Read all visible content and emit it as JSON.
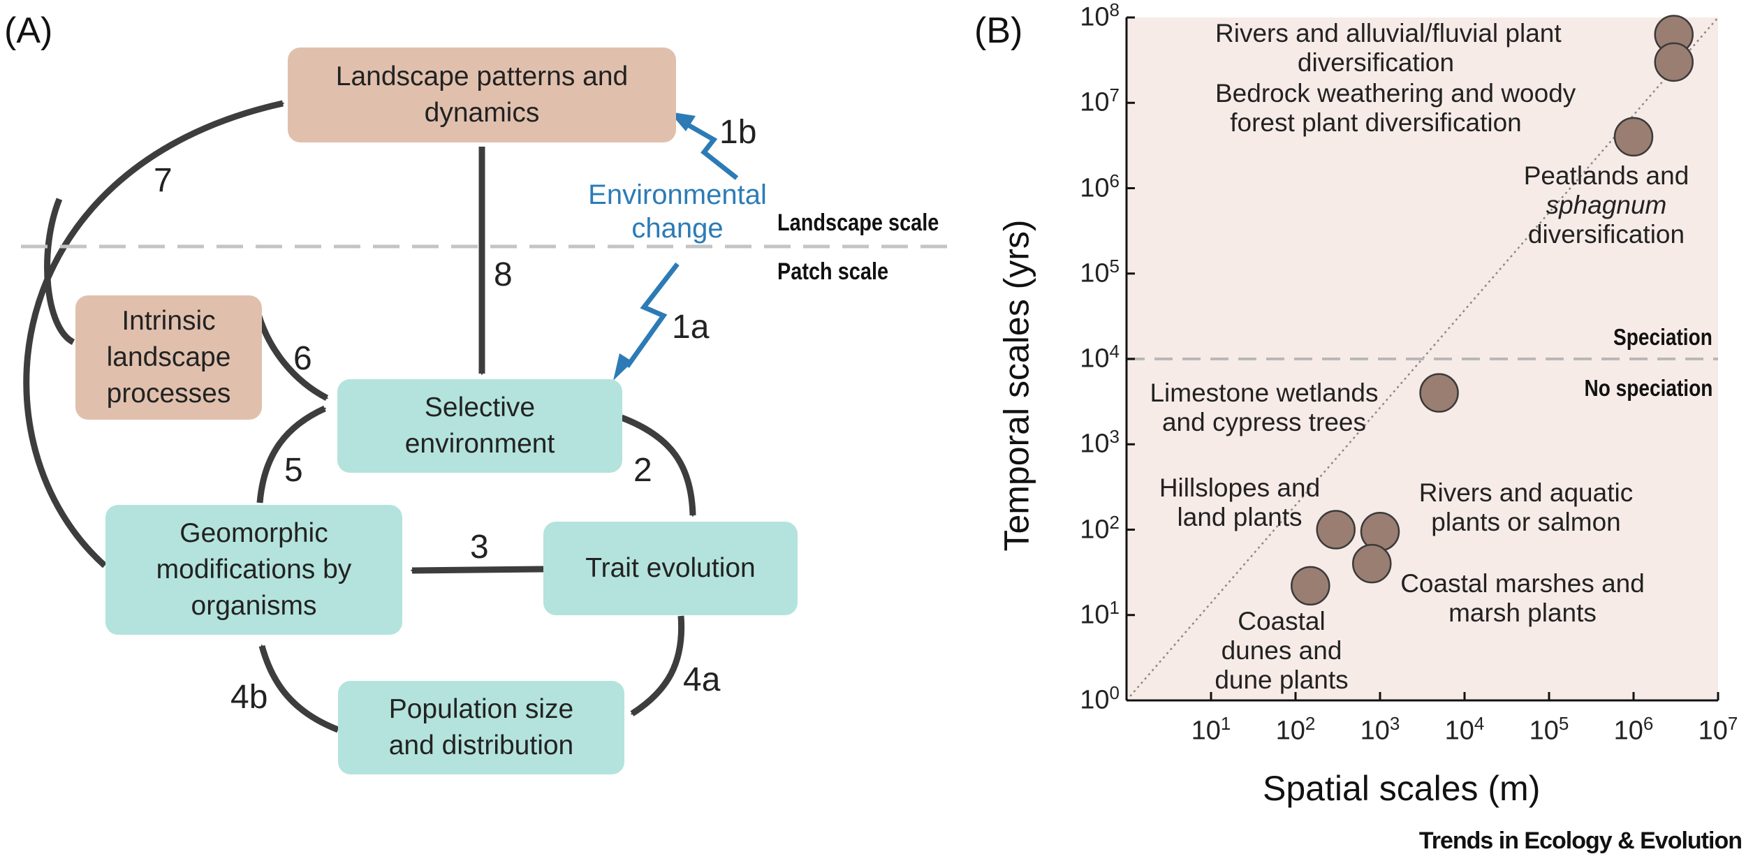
{
  "panel_a": {
    "label": "(A)",
    "boxes": {
      "landscape_patterns": "Landscape patterns and dynamics",
      "intrinsic_processes": "Intrinsic landscape processes",
      "selective_environment": "Selective environment",
      "trait_evolution": "Trait evolution",
      "geomorphic_modifications": "Geomorphic modifications by organisms",
      "population_size": "Population size and distribution"
    },
    "environmental_change": "Environmental change",
    "landscape_scale": "Landscape scale",
    "patch_scale": "Patch scale",
    "arrow_labels": {
      "a1a": "1a",
      "a1b": "1b",
      "a2": "2",
      "a3": "3",
      "a4a": "4a",
      "a4b": "4b",
      "a5": "5",
      "a6": "6",
      "a7": "7",
      "a8": "8"
    },
    "colors": {
      "tan_box": "#e0c0ad",
      "teal_box": "#b3e3dc",
      "arrow": "#3d3d3d",
      "environment": "#2c7bb6"
    }
  },
  "panel_b": {
    "label": "(B)",
    "chart_data": {
      "type": "scatter",
      "xlabel": "Spatial scales (m)",
      "ylabel": "Temporal scales (yrs)",
      "x_scale": "log",
      "y_scale": "log",
      "xlim": [
        1,
        10000000
      ],
      "ylim": [
        1,
        100000000
      ],
      "x_ticks": [
        "10^1",
        "10^2",
        "10^3",
        "10^4",
        "10^5",
        "10^6",
        "10^7"
      ],
      "y_ticks": [
        "10^0",
        "10^1",
        "10^2",
        "10^3",
        "10^4",
        "10^5",
        "10^6",
        "10^7",
        "10^8"
      ],
      "threshold_y": 10000,
      "threshold_labels": {
        "above": "Speciation",
        "below": "No speciation"
      },
      "points": [
        {
          "x": 3000000,
          "y": 63000000,
          "label": "Rivers and alluvial/fluvial plant diversification"
        },
        {
          "x": 3000000,
          "y": 30000000,
          "label": "Bedrock weathering and woody forest plant diversification"
        },
        {
          "x": 1000000,
          "y": 4000000,
          "label": "Peatlands and sphagnum diversification"
        },
        {
          "x": 5000,
          "y": 4000,
          "label": "Limestone wetlands and cypress trees"
        },
        {
          "x": 300,
          "y": 100,
          "label": "Hillslopes and land plants"
        },
        {
          "x": 1000,
          "y": 95,
          "label": "Rivers and aquatic plants or salmon"
        },
        {
          "x": 800,
          "y": 40,
          "label": "Coastal marshes and marsh plants"
        },
        {
          "x": 150,
          "y": 22,
          "label": "Coastal dunes and dune plants"
        }
      ],
      "colors": {
        "background": "#f7ebe7",
        "point_fill": "#9a7e72",
        "point_edge": "#3a3a3a"
      }
    },
    "annotations": {
      "rivers_alluvial": [
        "Rivers and alluvial/fluvial plant",
        "diversification"
      ],
      "bedrock": [
        "Bedrock weathering and woody",
        "forest plant diversification"
      ],
      "peatlands_1": "Peatlands and",
      "peatlands_2": "sphagnum",
      "peatlands_3": "diversification",
      "limestone": [
        "Limestone wetlands",
        "and cypress trees"
      ],
      "hillslopes": [
        "Hillslopes and",
        "land plants"
      ],
      "rivers_aquatic": [
        "Rivers and aquatic",
        "plants or salmon"
      ],
      "coastal_marshes": [
        "Coastal marshes and",
        "marsh plants"
      ],
      "coastal_dunes": [
        "Coastal",
        "dunes and",
        "dune plants"
      ]
    }
  },
  "journal": "Trends in Ecology & Evolution"
}
